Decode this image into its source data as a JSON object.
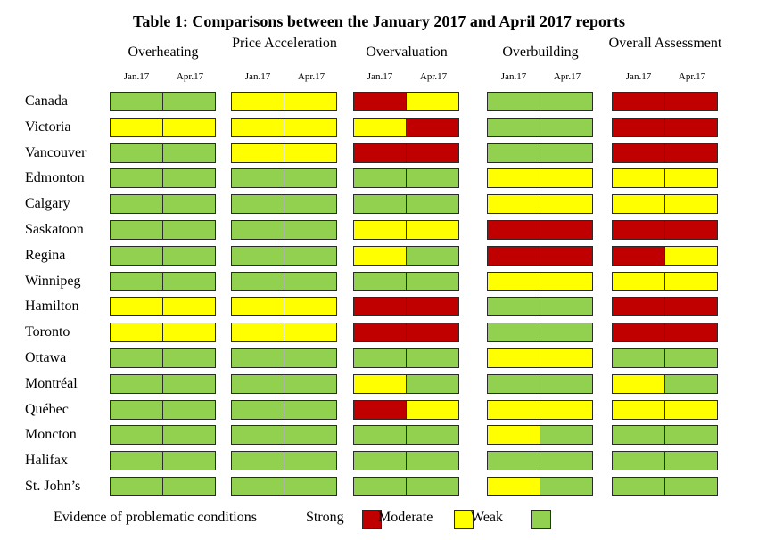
{
  "title": "Table 1: Comparisons between the January 2017 and April 2017 reports",
  "columns": [
    {
      "name": "Overheating",
      "sub": [
        "Jan.17",
        "Apr.17"
      ]
    },
    {
      "name": "Price Acceleration",
      "sub": [
        "Jan.17",
        "Apr.17"
      ]
    },
    {
      "name": "Overvaluation",
      "sub": [
        "Jan.17",
        "Apr.17"
      ]
    },
    {
      "name": "Overbuilding",
      "sub": [
        "Jan.17",
        "Apr.17"
      ]
    },
    {
      "name": "Overall Assessment",
      "sub": [
        "Jan.17",
        "Apr.17"
      ]
    }
  ],
  "colors": {
    "strong": "#c00000",
    "moderate": "#ffff00",
    "weak": "#92d050"
  },
  "rows": [
    {
      "city": "Canada",
      "levels": [
        "weak",
        "weak",
        "moderate",
        "moderate",
        "strong",
        "moderate",
        "weak",
        "weak",
        "strong",
        "strong"
      ]
    },
    {
      "city": "Victoria",
      "levels": [
        "moderate",
        "moderate",
        "moderate",
        "moderate",
        "moderate",
        "strong",
        "weak",
        "weak",
        "strong",
        "strong"
      ]
    },
    {
      "city": "Vancouver",
      "levels": [
        "weak",
        "weak",
        "moderate",
        "moderate",
        "strong",
        "strong",
        "weak",
        "weak",
        "strong",
        "strong"
      ]
    },
    {
      "city": "Edmonton",
      "levels": [
        "weak",
        "weak",
        "weak",
        "weak",
        "weak",
        "weak",
        "moderate",
        "moderate",
        "moderate",
        "moderate"
      ]
    },
    {
      "city": "Calgary",
      "levels": [
        "weak",
        "weak",
        "weak",
        "weak",
        "weak",
        "weak",
        "moderate",
        "moderate",
        "moderate",
        "moderate"
      ]
    },
    {
      "city": "Saskatoon",
      "levels": [
        "weak",
        "weak",
        "weak",
        "weak",
        "moderate",
        "moderate",
        "strong",
        "strong",
        "strong",
        "strong"
      ]
    },
    {
      "city": "Regina",
      "levels": [
        "weak",
        "weak",
        "weak",
        "weak",
        "moderate",
        "weak",
        "strong",
        "strong",
        "strong",
        "moderate"
      ]
    },
    {
      "city": "Winnipeg",
      "levels": [
        "weak",
        "weak",
        "weak",
        "weak",
        "weak",
        "weak",
        "moderate",
        "moderate",
        "moderate",
        "moderate"
      ]
    },
    {
      "city": "Hamilton",
      "levels": [
        "moderate",
        "moderate",
        "moderate",
        "moderate",
        "strong",
        "strong",
        "weak",
        "weak",
        "strong",
        "strong"
      ]
    },
    {
      "city": "Toronto",
      "levels": [
        "moderate",
        "moderate",
        "moderate",
        "moderate",
        "strong",
        "strong",
        "weak",
        "weak",
        "strong",
        "strong"
      ]
    },
    {
      "city": "Ottawa",
      "levels": [
        "weak",
        "weak",
        "weak",
        "weak",
        "weak",
        "weak",
        "moderate",
        "moderate",
        "weak",
        "weak"
      ]
    },
    {
      "city": "Montréal",
      "levels": [
        "weak",
        "weak",
        "weak",
        "weak",
        "moderate",
        "weak",
        "weak",
        "weak",
        "moderate",
        "weak"
      ]
    },
    {
      "city": "Québec",
      "levels": [
        "weak",
        "weak",
        "weak",
        "weak",
        "strong",
        "moderate",
        "moderate",
        "moderate",
        "moderate",
        "moderate"
      ]
    },
    {
      "city": "Moncton",
      "levels": [
        "weak",
        "weak",
        "weak",
        "weak",
        "weak",
        "weak",
        "moderate",
        "weak",
        "weak",
        "weak"
      ]
    },
    {
      "city": "Halifax",
      "levels": [
        "weak",
        "weak",
        "weak",
        "weak",
        "weak",
        "weak",
        "weak",
        "weak",
        "weak",
        "weak"
      ]
    },
    {
      "city": "St. John’s",
      "levels": [
        "weak",
        "weak",
        "weak",
        "weak",
        "weak",
        "weak",
        "moderate",
        "weak",
        "weak",
        "weak"
      ]
    }
  ],
  "legend": {
    "caption": "Evidence of problematic conditions",
    "strong": "Strong",
    "moderate": "Moderate",
    "weak": "Weak"
  }
}
